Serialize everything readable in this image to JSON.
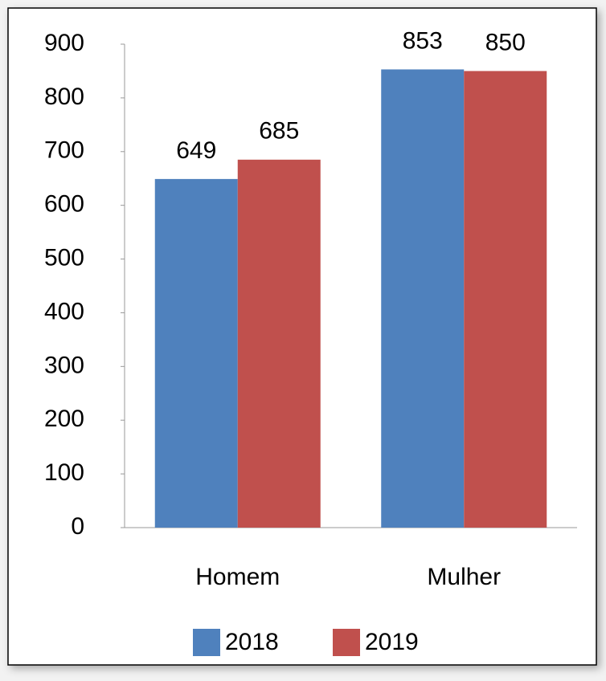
{
  "chart_data": {
    "type": "bar",
    "categories": [
      "Homem",
      "Mulher"
    ],
    "series": [
      {
        "name": "2018",
        "color": "#4f81bd",
        "values": [
          649,
          853
        ]
      },
      {
        "name": "2019",
        "color": "#c0504d",
        "values": [
          685,
          850
        ]
      }
    ],
    "ylim": [
      0,
      900
    ],
    "yticks": [
      0,
      100,
      200,
      300,
      400,
      500,
      600,
      700,
      800,
      900
    ],
    "grid": false,
    "legend": "bottom"
  }
}
